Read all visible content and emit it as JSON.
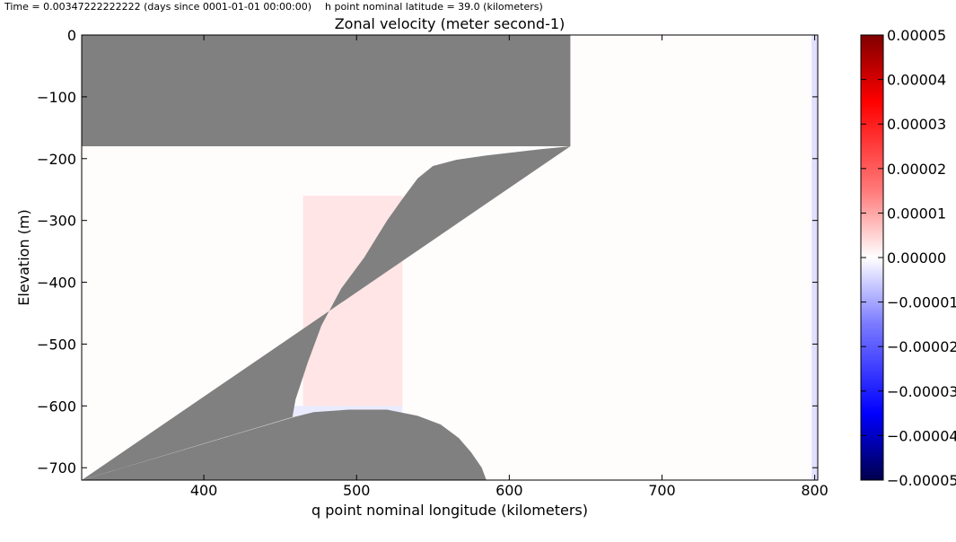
{
  "header": {
    "time_text": "Time = 0.00347222222222 (days since 0001-01-01 00:00:00)",
    "latitude_text": "h point nominal latitude = 39.0 (kilometers)"
  },
  "chart_data": {
    "type": "heatmap",
    "title": "Zonal velocity (meter  second-1)",
    "xlabel": "q point nominal longitude (kilometers)",
    "ylabel": "Elevation (m)",
    "xlim": [
      320,
      802
    ],
    "ylim": [
      -720,
      0
    ],
    "xticks": [
      400,
      500,
      600,
      700,
      800
    ],
    "yticks": [
      0,
      -100,
      -200,
      -300,
      -400,
      -500,
      -600,
      -700
    ],
    "colormap": "seismic",
    "colorbar": {
      "range": [
        -5e-05,
        5e-05
      ],
      "ticks": [
        "0.00005",
        "0.00004",
        "0.00003",
        "0.00002",
        "0.00001",
        "0.00000",
        "-0.00001",
        "-0.00002",
        "-0.00003",
        "-0.00004",
        "-0.00005"
      ],
      "colors": {
        "low": "#00004c",
        "mid": "#ffffff",
        "high": "#800000"
      }
    },
    "masked_color": "#808080",
    "topography_upper": [
      [
        320,
        -720
      ],
      [
        640,
        -180
      ],
      [
        620,
        -185
      ],
      [
        585,
        -195
      ],
      [
        565,
        -202
      ],
      [
        550,
        -212
      ],
      [
        540,
        -232
      ],
      [
        530,
        -265
      ],
      [
        520,
        -300
      ],
      [
        505,
        -360
      ],
      [
        490,
        -410
      ],
      [
        477,
        -470
      ],
      [
        468,
        -530
      ],
      [
        460,
        -590
      ],
      [
        458,
        -618
      ],
      [
        320,
        -720
      ]
    ],
    "topography_lower": [
      [
        459,
        -618
      ],
      [
        472,
        -610
      ],
      [
        495,
        -606
      ],
      [
        520,
        -606
      ],
      [
        540,
        -616
      ],
      [
        555,
        -630
      ],
      [
        567,
        -652
      ],
      [
        575,
        -675
      ],
      [
        582,
        -700
      ],
      [
        585,
        -720
      ],
      [
        320,
        -720
      ]
    ],
    "highlights": [
      {
        "x_range": [
          465,
          530
        ],
        "band": "slope",
        "value": 5e-06
      },
      {
        "x_range": [
          458,
          530
        ],
        "band": "bottom",
        "value": -4e-06
      },
      {
        "x_range": [
          798,
          802
        ],
        "band": "column",
        "value": -6e-06
      }
    ],
    "interior_value": 5e-07
  }
}
